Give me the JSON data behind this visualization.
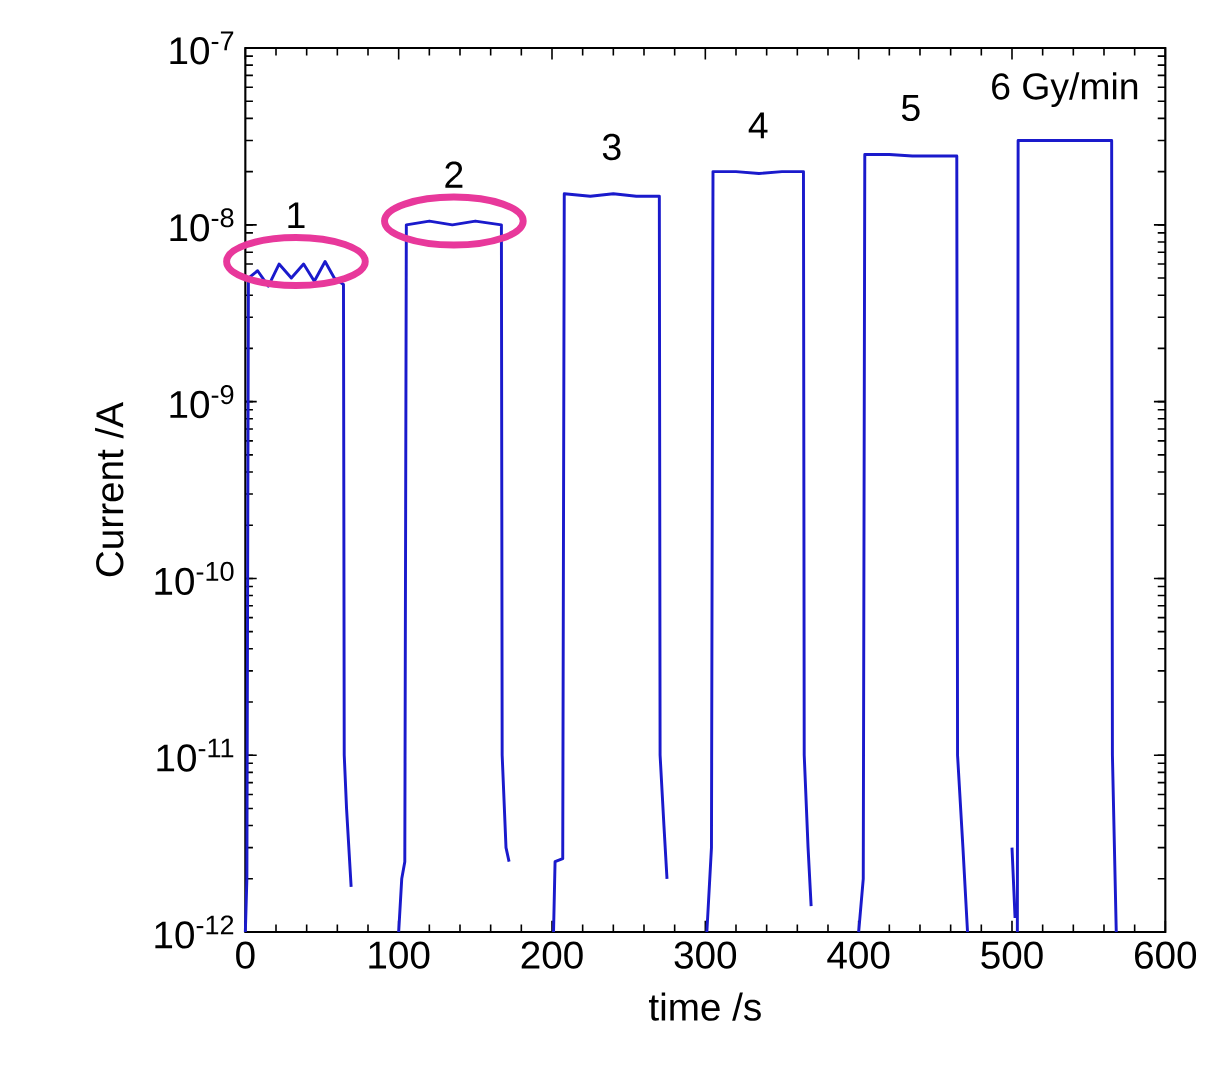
{
  "chart_data": {
    "type": "line",
    "xlabel": "time /s",
    "ylabel": "Current /A",
    "log": "y",
    "xlim": [
      0,
      600
    ],
    "xticks": [
      0,
      100,
      200,
      300,
      400,
      500,
      600
    ],
    "ylim": [
      1e-12,
      1e-07
    ],
    "yticks": [
      {
        "value": 1e-12,
        "label": "10$^{-12}$"
      },
      {
        "value": 1e-11,
        "label": "10$^{-11}$"
      },
      {
        "value": 1e-10,
        "label": "10$^{-10}$"
      },
      {
        "value": 1e-09,
        "label": "10$^{-9}$"
      },
      {
        "value": 1e-08,
        "label": "10$^{-8}$"
      },
      {
        "value": 1e-07,
        "label": "10$^{-7}$"
      }
    ],
    "series": [
      {
        "color": "#1a1acc",
        "x": [
          0,
          1,
          2,
          8,
          15,
          22,
          30,
          38,
          45,
          52,
          58,
          64,
          64.5,
          66,
          69,
          80,
          100,
          102,
          104,
          105,
          120,
          135,
          150,
          167,
          167.5,
          170,
          172,
          185,
          201,
          202,
          207,
          208,
          225,
          240,
          255,
          270,
          270.5,
          273,
          275,
          288,
          301,
          304,
          305,
          320,
          335,
          350,
          364,
          364.5,
          367,
          369,
          385,
          400,
          403,
          404,
          420,
          435,
          450,
          464,
          464.5,
          468,
          471,
          485,
          500,
          502,
          503,
          503.5,
          504,
          520,
          535,
          550,
          565,
          565.5,
          568
        ],
        "values": [
          1e-12,
          2e-12,
          5e-09,
          5.5e-09,
          4.5e-09,
          6e-09,
          5e-09,
          6e-09,
          4.8e-09,
          6.2e-09,
          5e-09,
          4.6e-09,
          1e-11,
          5e-12,
          1.8e-12,
          null,
          1e-12,
          2e-12,
          2.5e-12,
          1e-08,
          1.05e-08,
          1e-08,
          1.05e-08,
          1e-08,
          1e-11,
          3e-12,
          2.5e-12,
          null,
          1e-12,
          2.5e-12,
          2.6e-12,
          1.5e-08,
          1.45e-08,
          1.5e-08,
          1.45e-08,
          1.45e-08,
          1e-11,
          4e-12,
          2e-12,
          null,
          1e-12,
          3e-12,
          2e-08,
          2e-08,
          1.95e-08,
          2e-08,
          2e-08,
          1e-11,
          3e-12,
          1.4e-12,
          null,
          1e-12,
          2e-12,
          2.5e-08,
          2.5e-08,
          2.45e-08,
          2.45e-08,
          2.45e-08,
          1e-11,
          3e-12,
          1e-12,
          null,
          3e-12,
          1.2e-12,
          null,
          1e-12,
          3e-08,
          3e-08,
          3e-08,
          3e-08,
          3e-08,
          1e-11,
          1e-12
        ]
      }
    ],
    "annotations": [
      "1",
      "2",
      "3",
      "4",
      "5",
      "6 Gy/min"
    ]
  }
}
